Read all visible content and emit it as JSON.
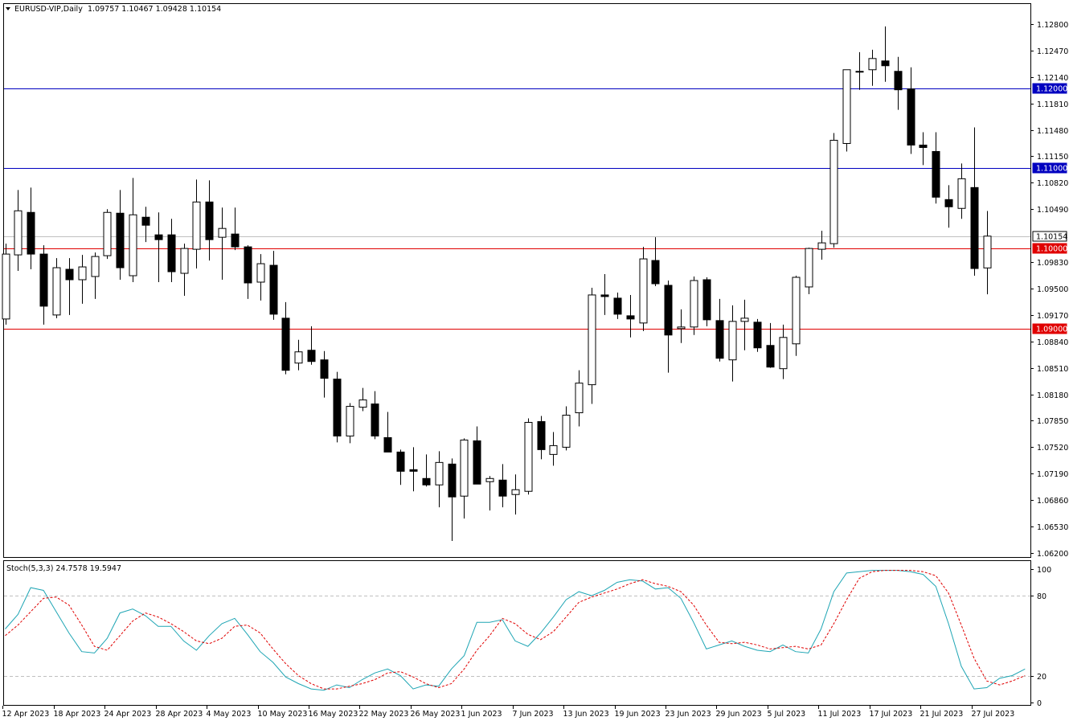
{
  "header": {
    "symbol": "EURUSD-VIP,Daily",
    "ohlc": "1.09757 1.10467 1.09428 1.10154"
  },
  "stoch_header": "Stoch(5,3,3) 24.7578 19.5947",
  "colors": {
    "background": "#ffffff",
    "foreground": "#000000",
    "blue_line": "#0000c0",
    "red_line": "#e00000",
    "current_price_line": "#c0c0c0",
    "stoch_main": "#1ea5b4",
    "stoch_signal": "#e00000"
  },
  "chart_data": [
    {
      "type": "candlestick",
      "title": "EURUSD-VIP,Daily",
      "ylim": [
        1.0615,
        1.1305
      ],
      "y_ticks": [
        {
          "value": 1.128,
          "label": "1.12800"
        },
        {
          "value": 1.1247,
          "label": "1.12470"
        },
        {
          "value": 1.1214,
          "label": "1.12140"
        },
        {
          "value": 1.1181,
          "label": "1.11810"
        },
        {
          "value": 1.1148,
          "label": "1.11480"
        },
        {
          "value": 1.1115,
          "label": "1.11150"
        },
        {
          "value": 1.1082,
          "label": "1.10820"
        },
        {
          "value": 1.1049,
          "label": "1.10490"
        },
        {
          "value": 1.0983,
          "label": "1.09830"
        },
        {
          "value": 1.095,
          "label": "1.09500"
        },
        {
          "value": 1.0917,
          "label": "1.09170"
        },
        {
          "value": 1.0884,
          "label": "1.08840"
        },
        {
          "value": 1.0851,
          "label": "1.08510"
        },
        {
          "value": 1.0818,
          "label": "1.08180"
        },
        {
          "value": 1.0785,
          "label": "1.07850"
        },
        {
          "value": 1.0752,
          "label": "1.07520"
        },
        {
          "value": 1.0719,
          "label": "1.07190"
        },
        {
          "value": 1.0686,
          "label": "1.06860"
        },
        {
          "value": 1.0653,
          "label": "1.06530"
        },
        {
          "value": 1.062,
          "label": "1.06200"
        }
      ],
      "levels": [
        {
          "value": 1.12,
          "label": "1.12000",
          "color": "blue"
        },
        {
          "value": 1.11,
          "label": "1.11000",
          "color": "blue"
        },
        {
          "value": 1.10154,
          "label": "1.10154",
          "color": "current"
        },
        {
          "value": 1.1,
          "label": "1.10000",
          "color": "red"
        },
        {
          "value": 1.09,
          "label": "1.09000",
          "color": "red"
        }
      ],
      "x_ticks": [
        "12 Apr 2023",
        "18 Apr 2023",
        "24 Apr 2023",
        "28 Apr 2023",
        "4 May 2023",
        "10 May 2023",
        "16 May 2023",
        "22 May 2023",
        "26 May 2023",
        "1 Jun 2023",
        "7 Jun 2023",
        "13 Jun 2023",
        "19 Jun 2023",
        "23 Jun 2023",
        "29 Jun 2023",
        "5 Jul 2023",
        "11 Jul 2023",
        "17 Jul 2023",
        "21 Jul 2023",
        "27 Jul 2023"
      ],
      "candles": [
        {
          "o": 1.0912,
          "h": 1.1006,
          "l": 1.0905,
          "c": 1.0993
        },
        {
          "o": 1.0992,
          "h": 1.1073,
          "l": 1.0972,
          "c": 1.1047
        },
        {
          "o": 1.1045,
          "h": 1.1076,
          "l": 1.0974,
          "c": 1.0993
        },
        {
          "o": 1.0993,
          "h": 1.1004,
          "l": 1.0905,
          "c": 1.0928
        },
        {
          "o": 1.0917,
          "h": 1.0988,
          "l": 1.0913,
          "c": 1.0976
        },
        {
          "o": 1.0974,
          "h": 1.0988,
          "l": 1.0917,
          "c": 1.0961
        },
        {
          "o": 1.0961,
          "h": 1.0992,
          "l": 1.0931,
          "c": 1.0977
        },
        {
          "o": 1.0965,
          "h": 1.0995,
          "l": 1.0937,
          "c": 1.099
        },
        {
          "o": 1.0991,
          "h": 1.1049,
          "l": 1.0987,
          "c": 1.1045
        },
        {
          "o": 1.1044,
          "h": 1.1073,
          "l": 1.0961,
          "c": 1.0976
        },
        {
          "o": 1.0966,
          "h": 1.1088,
          "l": 1.0958,
          "c": 1.1042
        },
        {
          "o": 1.1039,
          "h": 1.1052,
          "l": 1.1008,
          "c": 1.1029
        },
        {
          "o": 1.1017,
          "h": 1.1045,
          "l": 1.0958,
          "c": 1.1011
        },
        {
          "o": 1.1017,
          "h": 1.1037,
          "l": 1.0958,
          "c": 1.0971
        },
        {
          "o": 1.0969,
          "h": 1.1006,
          "l": 1.0941,
          "c": 1.1
        },
        {
          "o": 1.0999,
          "h": 1.1086,
          "l": 1.0975,
          "c": 1.1058
        },
        {
          "o": 1.1058,
          "h": 1.1085,
          "l": 1.0985,
          "c": 1.1011
        },
        {
          "o": 1.1014,
          "h": 1.1051,
          "l": 1.0961,
          "c": 1.1025
        },
        {
          "o": 1.1018,
          "h": 1.1051,
          "l": 1.0998,
          "c": 1.1002
        },
        {
          "o": 1.1002,
          "h": 1.1004,
          "l": 1.0937,
          "c": 1.0957
        },
        {
          "o": 1.0958,
          "h": 1.0993,
          "l": 1.0935,
          "c": 1.0981
        },
        {
          "o": 1.0979,
          "h": 1.0997,
          "l": 1.0911,
          "c": 1.0918
        },
        {
          "o": 1.0913,
          "h": 1.0933,
          "l": 1.0843,
          "c": 1.0848
        },
        {
          "o": 1.0857,
          "h": 1.0886,
          "l": 1.0848,
          "c": 1.0871
        },
        {
          "o": 1.0873,
          "h": 1.0903,
          "l": 1.0855,
          "c": 1.0859
        },
        {
          "o": 1.0861,
          "h": 1.0872,
          "l": 1.0814,
          "c": 1.0838
        },
        {
          "o": 1.0837,
          "h": 1.0846,
          "l": 1.0758,
          "c": 1.0766
        },
        {
          "o": 1.0766,
          "h": 1.0807,
          "l": 1.0757,
          "c": 1.0803
        },
        {
          "o": 1.0802,
          "h": 1.0826,
          "l": 1.0797,
          "c": 1.0811
        },
        {
          "o": 1.0806,
          "h": 1.0822,
          "l": 1.0762,
          "c": 1.0766
        },
        {
          "o": 1.0764,
          "h": 1.0796,
          "l": 1.0747,
          "c": 1.0746
        },
        {
          "o": 1.0746,
          "h": 1.0749,
          "l": 1.0705,
          "c": 1.0722
        },
        {
          "o": 1.0724,
          "h": 1.0752,
          "l": 1.0697,
          "c": 1.0722
        },
        {
          "o": 1.0713,
          "h": 1.0743,
          "l": 1.0703,
          "c": 1.0705
        },
        {
          "o": 1.0705,
          "h": 1.0747,
          "l": 1.0677,
          "c": 1.0733
        },
        {
          "o": 1.0731,
          "h": 1.0738,
          "l": 1.0635,
          "c": 1.069
        },
        {
          "o": 1.0691,
          "h": 1.0763,
          "l": 1.0663,
          "c": 1.0761
        },
        {
          "o": 1.076,
          "h": 1.0778,
          "l": 1.0706,
          "c": 1.0706
        },
        {
          "o": 1.0709,
          "h": 1.0716,
          "l": 1.0673,
          "c": 1.0713
        },
        {
          "o": 1.0711,
          "h": 1.0731,
          "l": 1.0677,
          "c": 1.0691
        },
        {
          "o": 1.0693,
          "h": 1.0718,
          "l": 1.0668,
          "c": 1.0699
        },
        {
          "o": 1.0697,
          "h": 1.0788,
          "l": 1.0693,
          "c": 1.0783
        },
        {
          "o": 1.0784,
          "h": 1.0791,
          "l": 1.0737,
          "c": 1.0749
        },
        {
          "o": 1.0743,
          "h": 1.0771,
          "l": 1.0729,
          "c": 1.0754
        },
        {
          "o": 1.0752,
          "h": 1.0803,
          "l": 1.0748,
          "c": 1.0792
        },
        {
          "o": 1.0795,
          "h": 1.0848,
          "l": 1.0778,
          "c": 1.0832
        },
        {
          "o": 1.083,
          "h": 1.0951,
          "l": 1.0806,
          "c": 1.0942
        },
        {
          "o": 1.0942,
          "h": 1.0968,
          "l": 1.0917,
          "c": 1.094
        },
        {
          "o": 1.0938,
          "h": 1.0945,
          "l": 1.0912,
          "c": 1.0918
        },
        {
          "o": 1.0916,
          "h": 1.0942,
          "l": 1.0889,
          "c": 1.0912
        },
        {
          "o": 1.0907,
          "h": 1.1002,
          "l": 1.0897,
          "c": 1.0987
        },
        {
          "o": 1.0985,
          "h": 1.1014,
          "l": 1.0953,
          "c": 1.0956
        },
        {
          "o": 1.0954,
          "h": 1.096,
          "l": 1.0845,
          "c": 1.0892
        },
        {
          "o": 1.09,
          "h": 1.0924,
          "l": 1.0882,
          "c": 1.0902
        },
        {
          "o": 1.0902,
          "h": 1.0965,
          "l": 1.0892,
          "c": 1.096
        },
        {
          "o": 1.0961,
          "h": 1.0964,
          "l": 1.0903,
          "c": 1.0911
        },
        {
          "o": 1.091,
          "h": 1.0937,
          "l": 1.0859,
          "c": 1.0863
        },
        {
          "o": 1.0861,
          "h": 1.0929,
          "l": 1.0834,
          "c": 1.0909
        },
        {
          "o": 1.0909,
          "h": 1.0936,
          "l": 1.0873,
          "c": 1.0913
        },
        {
          "o": 1.0908,
          "h": 1.0912,
          "l": 1.0871,
          "c": 1.0876
        },
        {
          "o": 1.0879,
          "h": 1.0907,
          "l": 1.0851,
          "c": 1.0852
        },
        {
          "o": 1.085,
          "h": 1.0905,
          "l": 1.0837,
          "c": 1.0889
        },
        {
          "o": 1.0881,
          "h": 1.0966,
          "l": 1.0866,
          "c": 1.0964
        },
        {
          "o": 1.0952,
          "h": 1.1001,
          "l": 1.0943,
          "c": 1.1
        },
        {
          "o": 1.0999,
          "h": 1.1022,
          "l": 1.0986,
          "c": 1.1007
        },
        {
          "o": 1.1006,
          "h": 1.1144,
          "l": 1.1001,
          "c": 1.1135
        },
        {
          "o": 1.1131,
          "h": 1.1221,
          "l": 1.1121,
          "c": 1.1223
        },
        {
          "o": 1.1221,
          "h": 1.1245,
          "l": 1.1198,
          "c": 1.1221
        },
        {
          "o": 1.1223,
          "h": 1.1248,
          "l": 1.1203,
          "c": 1.1237
        },
        {
          "o": 1.1234,
          "h": 1.1277,
          "l": 1.1208,
          "c": 1.1228
        },
        {
          "o": 1.1221,
          "h": 1.1239,
          "l": 1.1173,
          "c": 1.1198
        },
        {
          "o": 1.1199,
          "h": 1.1226,
          "l": 1.1118,
          "c": 1.1129
        },
        {
          "o": 1.1129,
          "h": 1.1145,
          "l": 1.1104,
          "c": 1.1126
        },
        {
          "o": 1.1121,
          "h": 1.1145,
          "l": 1.1056,
          "c": 1.1064
        },
        {
          "o": 1.1061,
          "h": 1.1079,
          "l": 1.1026,
          "c": 1.1052
        },
        {
          "o": 1.105,
          "h": 1.1106,
          "l": 1.1037,
          "c": 1.1087
        },
        {
          "o": 1.1076,
          "h": 1.1151,
          "l": 1.0966,
          "c": 1.0975
        },
        {
          "o": 1.09757,
          "h": 1.10467,
          "l": 1.09428,
          "c": 1.10154
        }
      ]
    },
    {
      "type": "line",
      "title": "Stoch(5,3,3) 24.7578 19.5947",
      "ylim": [
        -2,
        106
      ],
      "y_ticks": [
        {
          "value": 100,
          "label": "100"
        },
        {
          "value": 80,
          "label": "80"
        },
        {
          "value": 20,
          "label": "20"
        },
        {
          "value": 0,
          "label": "0"
        }
      ],
      "levels": [
        80,
        20
      ],
      "series": [
        {
          "values": [
            55,
            66,
            86,
            84,
            68,
            52,
            38,
            37,
            48,
            67,
            70,
            65,
            57,
            57,
            46,
            39,
            50,
            59,
            63,
            51,
            38,
            30,
            19,
            14,
            10,
            9,
            13,
            11,
            17,
            22,
            25,
            20,
            10,
            13,
            12,
            25,
            35,
            60,
            60,
            62,
            46,
            42,
            52,
            64,
            77,
            83,
            80,
            84,
            90,
            92,
            91,
            85,
            86,
            78,
            60,
            40,
            43,
            46,
            42,
            39,
            38,
            43,
            38,
            37,
            55,
            83,
            97,
            98,
            99,
            99,
            99,
            98,
            96,
            87,
            59,
            27,
            10,
            11,
            18,
            20,
            25
          ]
        },
        {
          "values": [
            50,
            58,
            68,
            78,
            79,
            73,
            58,
            42,
            39,
            50,
            61,
            67,
            64,
            59,
            53,
            46,
            44,
            48,
            57,
            58,
            52,
            40,
            29,
            20,
            14,
            10,
            10,
            12,
            14,
            17,
            22,
            23,
            19,
            14,
            11,
            14,
            25,
            39,
            50,
            63,
            59,
            51,
            47,
            53,
            64,
            75,
            79,
            82,
            85,
            89,
            92,
            89,
            87,
            83,
            73,
            58,
            45,
            44,
            45,
            43,
            40,
            41,
            42,
            40,
            43,
            59,
            77,
            93,
            98,
            99,
            99,
            99,
            98,
            95,
            82,
            58,
            33,
            16,
            13,
            16,
            20
          ]
        }
      ]
    }
  ]
}
